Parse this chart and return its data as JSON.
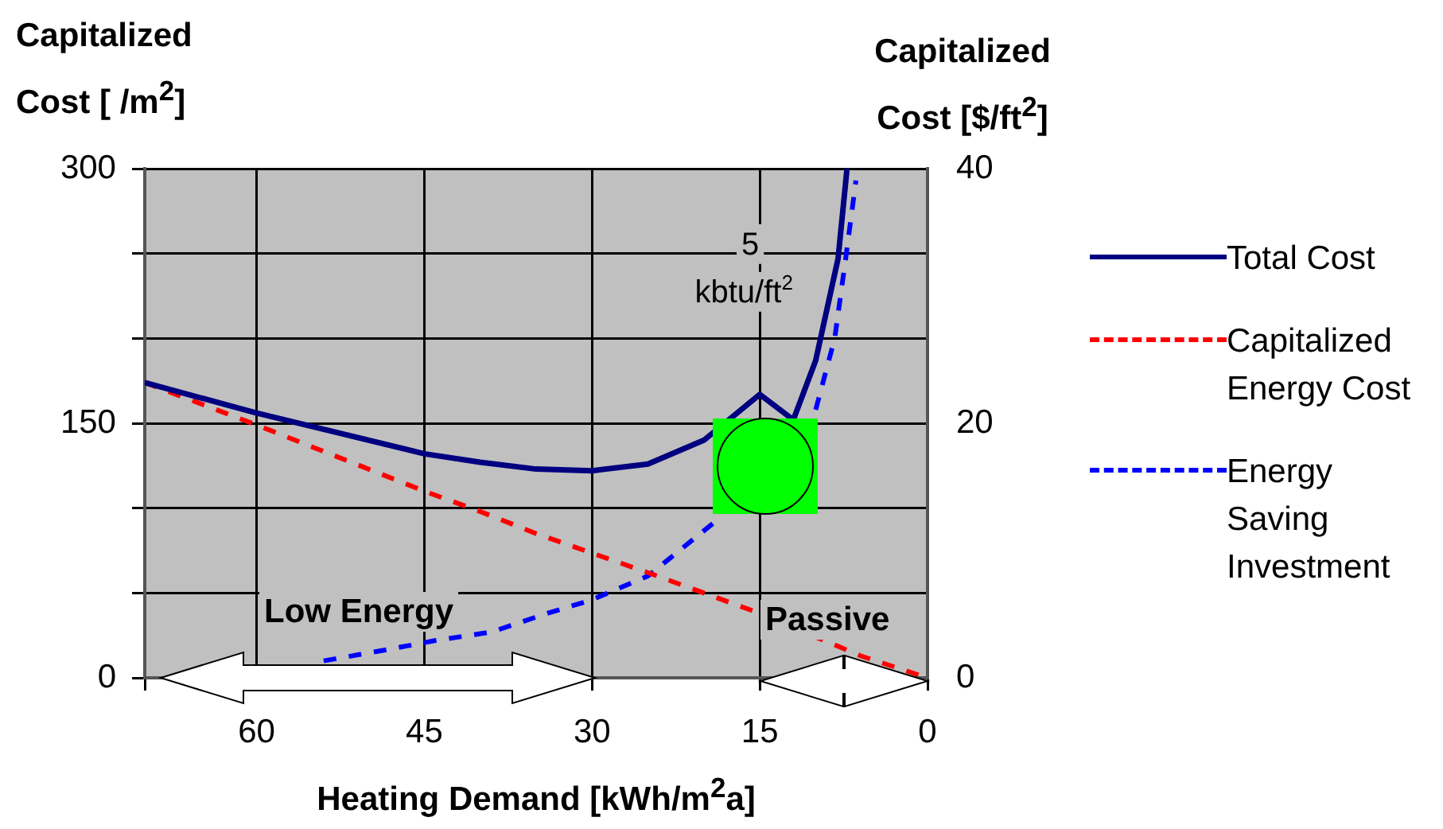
{
  "chart_data": {
    "type": "line",
    "xlabel": "Heating Demand [kWh/m$^{2}$a]",
    "ylabel": "Capitalized Cost  [  /m$^{2}$]",
    "y2label": "Capitalized Cost [$/ft$^{2}$]",
    "xlim": [
      70,
      0
    ],
    "xticks": [
      {
        "value": 70,
        "label": null
      },
      60,
      45,
      30,
      15,
      0
    ],
    "ylim": [
      0,
      300
    ],
    "yticks": [
      0,
      {
        "value": 50,
        "label": null
      },
      {
        "value": 100,
        "label": null
      },
      150,
      {
        "value": 200,
        "label": null
      },
      {
        "value": 250,
        "label": null
      },
      300
    ],
    "y2lim": [
      0,
      40
    ],
    "y2ticks": [
      0,
      20,
      40
    ],
    "grid": true,
    "legend": "right",
    "marker": "none",
    "series": [
      {
        "name": "Total Cost",
        "color": "#000080",
        "line_style": "solid",
        "x": [
          70,
          60,
          45,
          40,
          35,
          30,
          25,
          20,
          15,
          12,
          10,
          8,
          7.2
        ],
        "values": [
          174,
          156,
          132,
          127,
          123,
          122,
          126,
          140,
          167,
          152,
          187,
          247,
          300
        ]
      },
      {
        "name": "Capitalized Energy Cost",
        "color": "#ff0000",
        "line_style": "dashed",
        "x": [
          70,
          60,
          45,
          40,
          35,
          25,
          15,
          6,
          0
        ],
        "values": [
          174,
          149,
          110,
          98,
          85,
          62,
          38,
          13,
          0
        ]
      },
      {
        "name": "Energy Saving Investment",
        "color": "#0000ff",
        "line_style": "dashed",
        "x": [
          54,
          48,
          44,
          39,
          34,
          30,
          25,
          19,
          null,
          10,
          8.3,
          7.3,
          6.4
        ],
        "values": [
          10,
          17,
          22,
          27,
          38,
          46,
          60,
          92,
          null,
          158,
          200,
          248,
          293
        ]
      }
    ],
    "annotations": [
      "Low Energy",
      "Passive",
      {
        "text": "5 kbtu/ft$^{2}$",
        "x": 15,
        "y": 167
      }
    ]
  }
}
